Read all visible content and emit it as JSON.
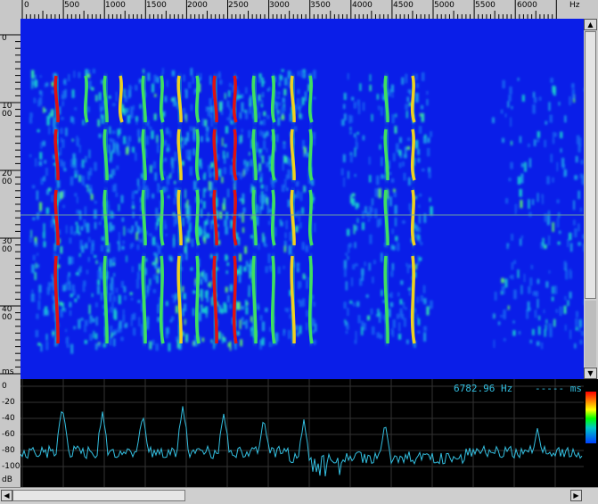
{
  "top_ruler": {
    "ticks": [
      "0",
      "500",
      "1000",
      "1500",
      "2000",
      "2500",
      "3000",
      "3500",
      "4000",
      "4500",
      "5000",
      "5500",
      "6000"
    ],
    "unit": "Hz"
  },
  "left_ruler": {
    "ticks": [
      "0",
      "1000",
      "2000",
      "3000",
      "4000"
    ],
    "unit": "ms"
  },
  "spectrum_ruler": {
    "ticks": [
      "0",
      "-20",
      "-40",
      "-60",
      "-80",
      "-100"
    ],
    "unit": "dB"
  },
  "readout": {
    "frequency": "6782.96 Hz",
    "time": "----- ms"
  },
  "colors": {
    "spectrogram_bg": "#0a1ee8",
    "spectrum_line": "#33bfe0",
    "grid": "#3a3a3a"
  }
}
